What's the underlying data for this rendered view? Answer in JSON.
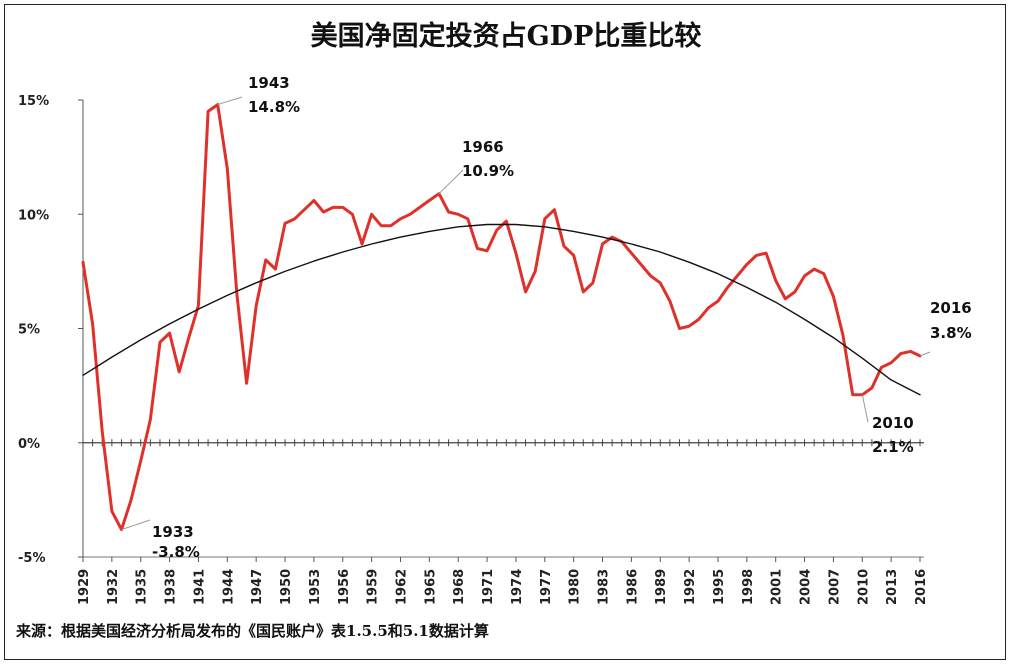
{
  "chart_data": {
    "type": "line",
    "title": "美国净固定投资占GDP比重比较",
    "source": "来源：根据美国经济分析局发布的《国民账户》表1.5.5和5.1数据计算",
    "ylim": [
      -5,
      15
    ],
    "yticks": [
      "15%",
      "10%",
      "5%",
      "0%",
      "-5%"
    ],
    "ytick_values": [
      15,
      10,
      5,
      0,
      -5
    ],
    "xlim": [
      1929,
      2016
    ],
    "xtick_labels": [
      "1929",
      "1932",
      "1935",
      "1938",
      "1941",
      "1944",
      "1947",
      "1950",
      "1953",
      "1956",
      "1959",
      "1962",
      "1965",
      "1968",
      "1971",
      "1974",
      "1977",
      "1980",
      "1983",
      "1986",
      "1989",
      "1992",
      "1995",
      "1998",
      "2001",
      "2004",
      "2007",
      "2010",
      "2013",
      "2016"
    ],
    "grid": false,
    "legend": "none",
    "series": [
      {
        "color": "#e0302a",
        "x": [
          1929,
          1930,
          1931,
          1932,
          1933,
          1934,
          1935,
          1936,
          1937,
          1938,
          1939,
          1940,
          1941,
          1942,
          1943,
          1944,
          1945,
          1946,
          1947,
          1948,
          1949,
          1950,
          1951,
          1952,
          1953,
          1954,
          1955,
          1956,
          1957,
          1958,
          1959,
          1960,
          1961,
          1962,
          1963,
          1964,
          1965,
          1966,
          1967,
          1968,
          1969,
          1970,
          1971,
          1972,
          1973,
          1974,
          1975,
          1976,
          1977,
          1978,
          1979,
          1980,
          1981,
          1982,
          1983,
          1984,
          1985,
          1986,
          1987,
          1988,
          1989,
          1990,
          1991,
          1992,
          1993,
          1994,
          1995,
          1996,
          1997,
          1998,
          1999,
          2000,
          2001,
          2002,
          2003,
          2004,
          2005,
          2006,
          2007,
          2008,
          2009,
          2010,
          2011,
          2012,
          2013,
          2014,
          2015,
          2016
        ],
        "y": [
          7.9,
          5.2,
          0.5,
          -3.0,
          -3.8,
          -2.5,
          -0.8,
          1.0,
          4.4,
          4.8,
          3.1,
          4.6,
          6.0,
          14.5,
          14.8,
          12.0,
          6.5,
          2.6,
          6.0,
          8.0,
          7.6,
          9.6,
          9.8,
          10.2,
          10.6,
          10.1,
          10.3,
          10.3,
          10.0,
          8.7,
          10.0,
          9.5,
          9.5,
          9.8,
          10.0,
          10.3,
          10.6,
          10.9,
          10.1,
          10.0,
          9.8,
          8.5,
          8.4,
          9.3,
          9.7,
          8.3,
          6.6,
          7.5,
          9.8,
          10.2,
          8.6,
          8.2,
          6.6,
          7.0,
          8.7,
          9.0,
          8.8,
          8.3,
          7.8,
          7.3,
          7.0,
          6.2,
          5.0,
          5.1,
          5.4,
          5.9,
          6.2,
          6.8,
          7.3,
          7.8,
          8.2,
          8.3,
          7.1,
          6.3,
          6.6,
          7.3,
          7.6,
          7.4,
          6.4,
          4.7,
          2.1,
          2.1,
          2.4,
          3.3,
          3.5,
          3.9,
          4.0,
          3.8
        ]
      },
      {
        "color": "#111111",
        "x": [
          1929,
          1932,
          1935,
          1938,
          1941,
          1944,
          1947,
          1950,
          1953,
          1956,
          1959,
          1962,
          1965,
          1968,
          1971,
          1974,
          1977,
          1980,
          1983,
          1986,
          1989,
          1992,
          1995,
          1998,
          2001,
          2004,
          2007,
          2010,
          2013,
          2016
        ],
        "y": [
          2.95,
          3.75,
          4.5,
          5.2,
          5.85,
          6.45,
          7.0,
          7.5,
          7.95,
          8.35,
          8.7,
          9.0,
          9.25,
          9.45,
          9.55,
          9.55,
          9.45,
          9.25,
          9.0,
          8.7,
          8.35,
          7.9,
          7.4,
          6.8,
          6.15,
          5.4,
          4.6,
          3.7,
          2.75,
          2.1
        ]
      }
    ],
    "annotations": [
      {
        "year": "1933",
        "value": "-3.8%"
      },
      {
        "year": "1943",
        "value": "14.8%"
      },
      {
        "year": "1966",
        "value": "10.9%"
      },
      {
        "year": "2010",
        "value": "2.1%"
      },
      {
        "year": "2016",
        "value": "3.8%"
      }
    ]
  }
}
